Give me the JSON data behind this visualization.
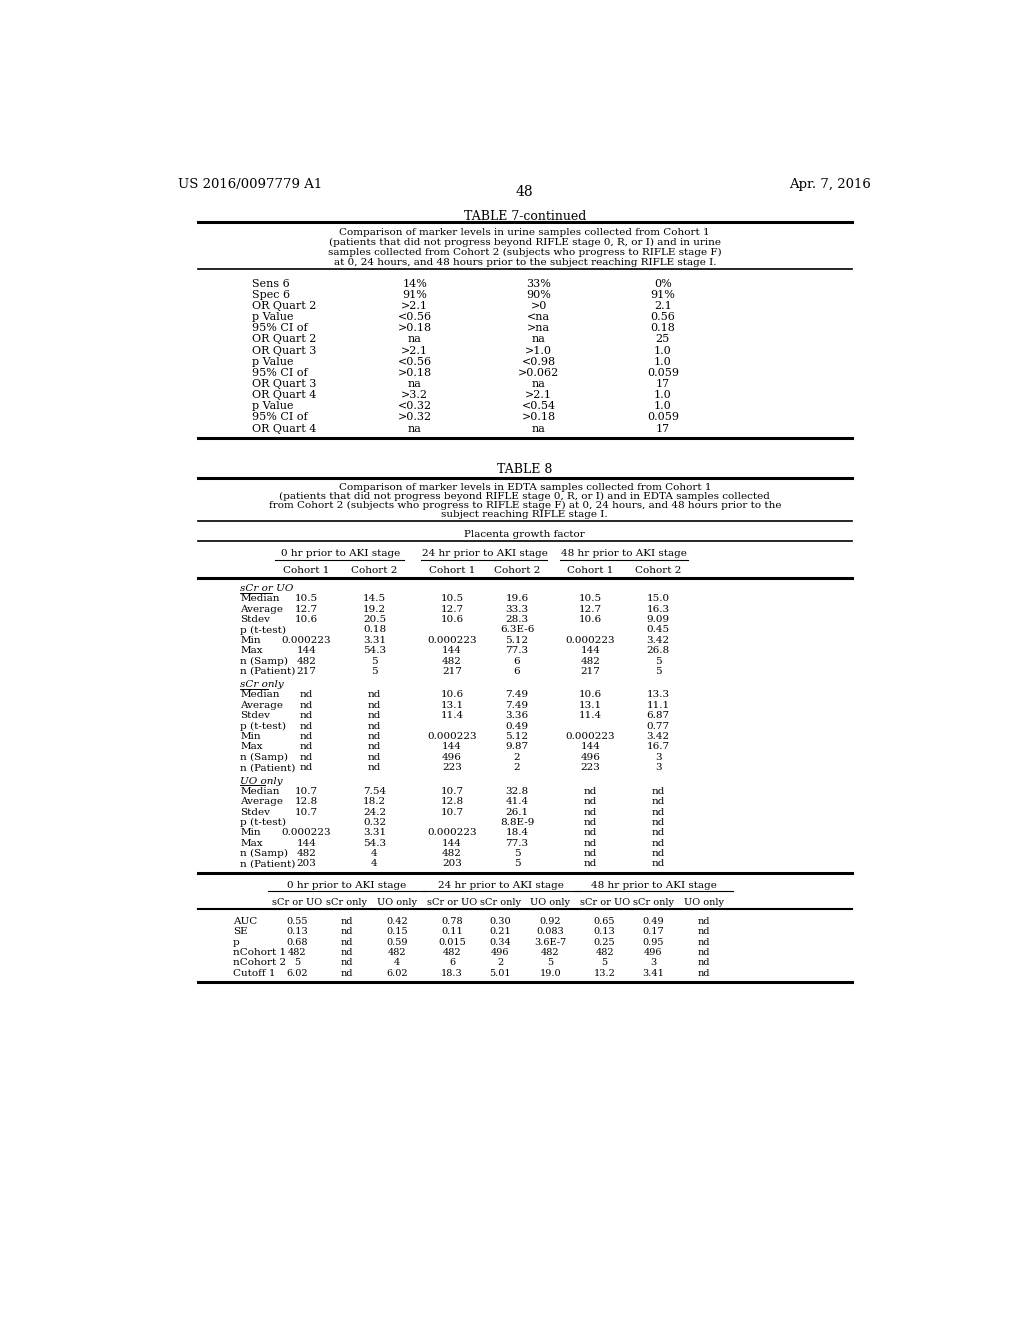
{
  "bg_color": "#ffffff",
  "header_left": "US 2016/0097779 A1",
  "header_right": "Apr. 7, 2016",
  "page_num": "48",
  "table7_continued_title": "TABLE 7-continued",
  "table7_caption_lines": [
    "Comparison of marker levels in urine samples collected from Cohort 1",
    "(patients that did not progress beyond RIFLE stage 0, R, or I) and in urine",
    "samples collected from Cohort 2 (subjects who progress to RIFLE stage F)",
    "at 0, 24 hours, and 48 hours prior to the subject reaching RIFLE stage I."
  ],
  "table7_rows": [
    [
      "Sens 6",
      "14%",
      "33%",
      "0%"
    ],
    [
      "Spec 6",
      "91%",
      "90%",
      "91%"
    ],
    [
      "OR Quart 2",
      ">2.1",
      ">0",
      "2.1"
    ],
    [
      "p Value",
      "<0.56",
      "<na",
      "0.56"
    ],
    [
      "95% CI of",
      ">0.18",
      ">na",
      "0.18"
    ],
    [
      "OR Quart 2",
      "na",
      "na",
      "25"
    ],
    [
      "OR Quart 3",
      ">2.1",
      ">1.0",
      "1.0"
    ],
    [
      "p Value",
      "<0.56",
      "<0.98",
      "1.0"
    ],
    [
      "95% CI of",
      ">0.18",
      ">0.062",
      "0.059"
    ],
    [
      "OR Quart 3",
      "na",
      "na",
      "17"
    ],
    [
      "OR Quart 4",
      ">3.2",
      ">2.1",
      "1.0"
    ],
    [
      "p Value",
      "<0.32",
      "<0.54",
      "1.0"
    ],
    [
      "95% CI of",
      ">0.32",
      ">0.18",
      "0.059"
    ],
    [
      "OR Quart 4",
      "na",
      "na",
      "17"
    ]
  ],
  "table8_title": "TABLE 8",
  "table8_caption_lines": [
    "Comparison of marker levels in EDTA samples collected from Cohort 1",
    "(patients that did not progress beyond RIFLE stage 0, R, or I) and in EDTA samples collected",
    "from Cohort 2 (subjects who progress to RIFLE stage F) at 0, 24 hours, and 48 hours prior to the",
    "subject reaching RIFLE stage I."
  ],
  "table8_main_header": "Placenta growth factor",
  "table8_col_groups": [
    "0 hr prior to AKI stage",
    "24 hr prior to AKI stage",
    "48 hr prior to AKI stage"
  ],
  "table8_subcols": [
    "Cohort 1",
    "Cohort 2",
    "Cohort 1",
    "Cohort 2",
    "Cohort 1",
    "Cohort 2"
  ],
  "table8_section1_label": "sCr or UO",
  "table8_section1_rows": [
    [
      "Median",
      "10.5",
      "14.5",
      "10.5",
      "19.6",
      "10.5",
      "15.0"
    ],
    [
      "Average",
      "12.7",
      "19.2",
      "12.7",
      "33.3",
      "12.7",
      "16.3"
    ],
    [
      "Stdev",
      "10.6",
      "20.5",
      "10.6",
      "28.3",
      "10.6",
      "9.09"
    ],
    [
      "p (t-test)",
      "",
      "0.18",
      "",
      "6.3E-6",
      "",
      "0.45"
    ],
    [
      "Min",
      "0.000223",
      "3.31",
      "0.000223",
      "5.12",
      "0.000223",
      "3.42"
    ],
    [
      "Max",
      "144",
      "54.3",
      "144",
      "77.3",
      "144",
      "26.8"
    ],
    [
      "n (Samp)",
      "482",
      "5",
      "482",
      "6",
      "482",
      "5"
    ],
    [
      "n (Patient)",
      "217",
      "5",
      "217",
      "6",
      "217",
      "5"
    ]
  ],
  "table8_section2_label": "sCr only",
  "table8_section2_rows": [
    [
      "Median",
      "nd",
      "nd",
      "10.6",
      "7.49",
      "10.6",
      "13.3"
    ],
    [
      "Average",
      "nd",
      "nd",
      "13.1",
      "7.49",
      "13.1",
      "11.1"
    ],
    [
      "Stdev",
      "nd",
      "nd",
      "11.4",
      "3.36",
      "11.4",
      "6.87"
    ],
    [
      "p (t-test)",
      "nd",
      "nd",
      "",
      "0.49",
      "",
      "0.77"
    ],
    [
      "Min",
      "nd",
      "nd",
      "0.000223",
      "5.12",
      "0.000223",
      "3.42"
    ],
    [
      "Max",
      "nd",
      "nd",
      "144",
      "9.87",
      "144",
      "16.7"
    ],
    [
      "n (Samp)",
      "nd",
      "nd",
      "496",
      "2",
      "496",
      "3"
    ],
    [
      "n (Patient)",
      "nd",
      "nd",
      "223",
      "2",
      "223",
      "3"
    ]
  ],
  "table8_section3_label": "UO only",
  "table8_section3_rows": [
    [
      "Median",
      "10.7",
      "7.54",
      "10.7",
      "32.8",
      "nd",
      "nd"
    ],
    [
      "Average",
      "12.8",
      "18.2",
      "12.8",
      "41.4",
      "nd",
      "nd"
    ],
    [
      "Stdev",
      "10.7",
      "24.2",
      "10.7",
      "26.1",
      "nd",
      "nd"
    ],
    [
      "p (t-test)",
      "",
      "0.32",
      "",
      "8.8E-9",
      "nd",
      "nd"
    ],
    [
      "Min",
      "0.000223",
      "3.31",
      "0.000223",
      "18.4",
      "nd",
      "nd"
    ],
    [
      "Max",
      "144",
      "54.3",
      "144",
      "77.3",
      "nd",
      "nd"
    ],
    [
      "n (Samp)",
      "482",
      "4",
      "482",
      "5",
      "nd",
      "nd"
    ],
    [
      "n (Patient)",
      "203",
      "4",
      "203",
      "5",
      "nd",
      "nd"
    ]
  ],
  "table8_bottom_header_groups": [
    "0 hr prior to AKI stage",
    "24 hr prior to AKI stage",
    "48 hr prior to AKI stage"
  ],
  "table8_bottom_subcols": [
    "sCr or UO",
    "sCr only",
    "UO only",
    "sCr or UO",
    "sCr only",
    "UO only",
    "sCr or UO",
    "sCr only",
    "UO only"
  ],
  "table8_bottom_rows": [
    [
      "AUC",
      "0.55",
      "nd",
      "0.42",
      "0.78",
      "0.30",
      "0.92",
      "0.65",
      "0.49",
      "nd"
    ],
    [
      "SE",
      "0.13",
      "nd",
      "0.15",
      "0.11",
      "0.21",
      "0.083",
      "0.13",
      "0.17",
      "nd"
    ],
    [
      "p",
      "0.68",
      "nd",
      "0.59",
      "0.015",
      "0.34",
      "3.6E-7",
      "0.25",
      "0.95",
      "nd"
    ],
    [
      "nCohort 1",
      "482",
      "nd",
      "482",
      "482",
      "496",
      "482",
      "482",
      "496",
      "nd"
    ],
    [
      "nCohort 2",
      "5",
      "nd",
      "4",
      "6",
      "2",
      "5",
      "5",
      "3",
      "nd"
    ],
    [
      "Cutoff 1",
      "6.02",
      "nd",
      "6.02",
      "18.3",
      "5.01",
      "19.0",
      "13.2",
      "3.41",
      "nd"
    ]
  ]
}
